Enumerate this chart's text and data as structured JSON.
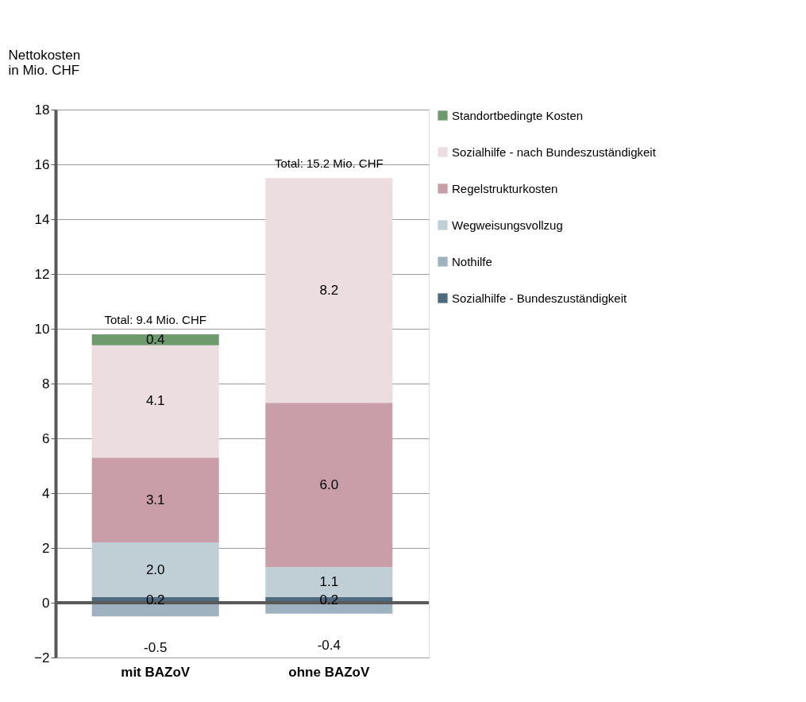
{
  "chart_data": {
    "type": "bar",
    "stacked": true,
    "ylabel": "Nettokosten\nin Mio. CHF",
    "categories": [
      "mit BAZoV",
      "ohne BAZoV"
    ],
    "series": [
      {
        "name": "Sozialhilfe - Bundeszuständigkeit",
        "color": "#4e6a7e",
        "values": [
          0.2,
          0.2
        ],
        "value_labels": [
          "0.2",
          "0.2"
        ]
      },
      {
        "name": "Nothilfe",
        "color": "#9fb2c0",
        "values": [
          -0.5,
          -0.4
        ],
        "value_labels": [
          "-0.5",
          "-0.4"
        ]
      },
      {
        "name": "Wegweisungsvollzug",
        "color": "#c0ced5",
        "values": [
          2.0,
          1.1
        ],
        "value_labels": [
          "2.0",
          "1.1"
        ]
      },
      {
        "name": "Regelstrukturkosten",
        "color": "#c99ea9",
        "values": [
          3.1,
          6.0
        ],
        "value_labels": [
          "3.1",
          "6.0"
        ]
      },
      {
        "name": "Sozialhilfe - nach Bundeszuständigkeit",
        "color": "#ecdde1",
        "values": [
          4.1,
          8.2
        ],
        "value_labels": [
          "4.1",
          "8.2"
        ]
      },
      {
        "name": "Standortbedingte Kosten",
        "color": "#6e9a6e",
        "values": [
          0.4,
          null
        ],
        "value_labels": [
          "0.4",
          null
        ]
      }
    ],
    "totals": [
      "Total: 9.4 Mio. CHF",
      "Total: 15.2 Mio. CHF"
    ],
    "ylim": [
      -2,
      18
    ],
    "yticks": [
      -2,
      0,
      2,
      4,
      6,
      8,
      10,
      12,
      14,
      16,
      18
    ],
    "grid": "y",
    "legend": "right",
    "ref_lines": [
      {
        "axis": "y",
        "value": 0,
        "color": "#595959"
      }
    ]
  }
}
